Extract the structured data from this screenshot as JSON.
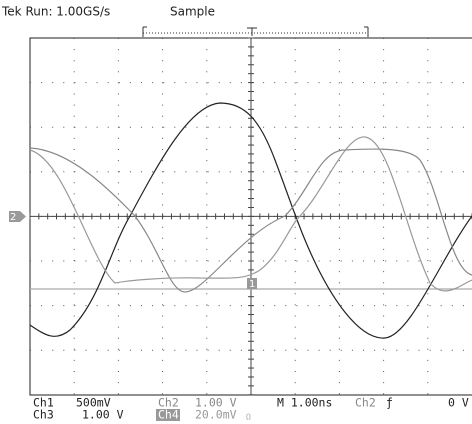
{
  "header": {
    "status": "Tek Run: 1.00GS/s",
    "mode": "Sample"
  },
  "markers": {
    "channel": "2",
    "ground": "1"
  },
  "footer": {
    "ch1": "Ch1",
    "ch1_scale": "500mV",
    "ch2": "Ch2",
    "ch2_scale": "1.00 V",
    "timebase": "M 1.00ns",
    "trigger_source": "Ch2",
    "trigger_slope": "ƒ",
    "trigger_level": "0 V",
    "ch3": "Ch3",
    "ch3_scale": "1.00 V",
    "ch4": "Ch4",
    "ch4_scale": "20.0mV",
    "ch4_coupling": "Ω"
  }
}
